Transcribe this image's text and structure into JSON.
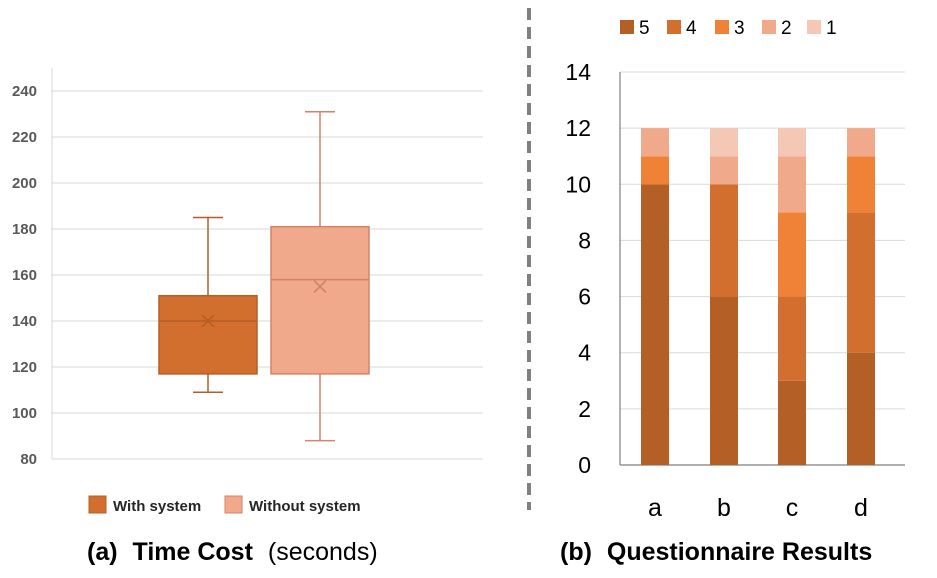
{
  "colors": {
    "with_system": "#d36f2e",
    "without_system": "#f1a98b",
    "level_5": "#b45f26",
    "level_4": "#d36f2e",
    "level_3": "#ef8236",
    "level_2": "#f1a98b",
    "level_1": "#f5c8b6",
    "grid": "#d9d9d9",
    "divider": "#808080"
  },
  "chart_data": [
    {
      "type": "box",
      "ylim": [
        80,
        240
      ],
      "yticks": [
        "80",
        "100",
        "120",
        "140",
        "160",
        "180",
        "200",
        "220",
        "240"
      ],
      "grid": true,
      "legend_position": "bottom",
      "series": [
        {
          "name": "With system",
          "min": 109,
          "q1": 117,
          "median": 140,
          "q3": 151,
          "max": 185,
          "mean": 140
        },
        {
          "name": "Without system",
          "min": 88,
          "q1": 117,
          "median": 158,
          "q3": 181,
          "max": 231,
          "mean": 155
        }
      ],
      "caption": {
        "label": "(a)",
        "title": "Time Cost",
        "unit": "(seconds)"
      }
    },
    {
      "type": "bar",
      "stacked": true,
      "categories": [
        "a",
        "b",
        "c",
        "d"
      ],
      "ylim": [
        0,
        14
      ],
      "yticks": [
        "0",
        "2",
        "4",
        "6",
        "8",
        "10",
        "12",
        "14"
      ],
      "grid": true,
      "legend_position": "top",
      "series": [
        {
          "name": "5",
          "values": [
            10,
            6,
            3,
            4
          ]
        },
        {
          "name": "4",
          "values": [
            0,
            4,
            3,
            5
          ]
        },
        {
          "name": "3",
          "values": [
            1,
            0,
            3,
            2
          ]
        },
        {
          "name": "2",
          "values": [
            1,
            1,
            2,
            1
          ]
        },
        {
          "name": "1",
          "values": [
            0,
            1,
            1,
            0
          ]
        }
      ],
      "caption": {
        "label": "(b)",
        "title": "Questionnaire Results"
      }
    }
  ]
}
